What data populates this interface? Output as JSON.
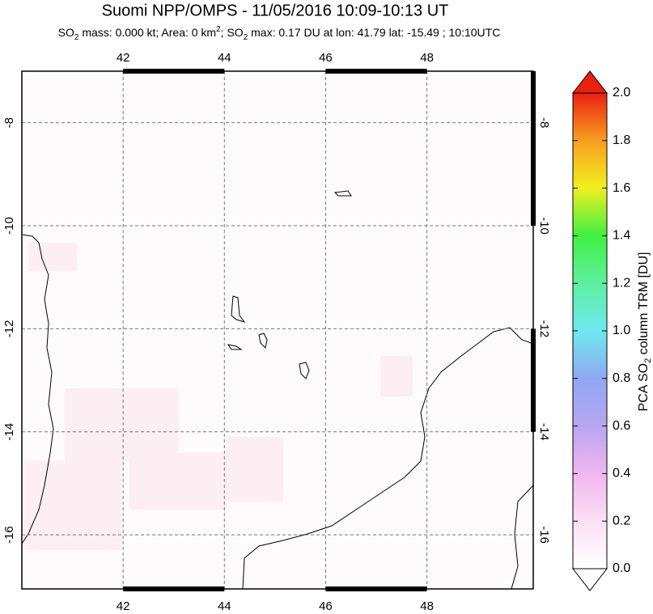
{
  "header": {
    "title": "Suomi NPP/OMPS - 11/05/2016 10:09-10:13 UT",
    "subtitle_parts": [
      "SO",
      "2",
      " mass: 0.000 kt; Area: 0 km",
      "2",
      "; SO",
      "2",
      " max: 0.17 DU at lon: 41.79 lat: -15.49 ; 10:10UTC"
    ]
  },
  "chart_data": {
    "type": "map",
    "xlim": [
      40,
      50.1
    ],
    "ylim": [
      -17.05,
      -7
    ],
    "xticks": [
      42,
      44,
      46,
      48
    ],
    "yticks": [
      -8,
      -10,
      -12,
      -14,
      -16
    ],
    "grid": true
  },
  "colorbar": {
    "label_parts": [
      "PCA SO",
      "2",
      " column TRM [DU]"
    ],
    "lim": [
      0,
      2
    ],
    "ticks": [
      {
        "value": 0,
        "label": "0.0"
      },
      {
        "value": 0.2,
        "label": "0.2"
      },
      {
        "value": 0.4,
        "label": "0.4"
      },
      {
        "value": 0.6,
        "label": "0.6"
      },
      {
        "value": 0.8,
        "label": "0.8"
      },
      {
        "value": 1,
        "label": "1.0"
      },
      {
        "value": 1.2,
        "label": "1.2"
      },
      {
        "value": 1.4,
        "label": "1.4"
      },
      {
        "value": 1.6,
        "label": "1.6"
      },
      {
        "value": 1.8,
        "label": "1.8"
      },
      {
        "value": 2,
        "label": "2.0"
      }
    ]
  }
}
